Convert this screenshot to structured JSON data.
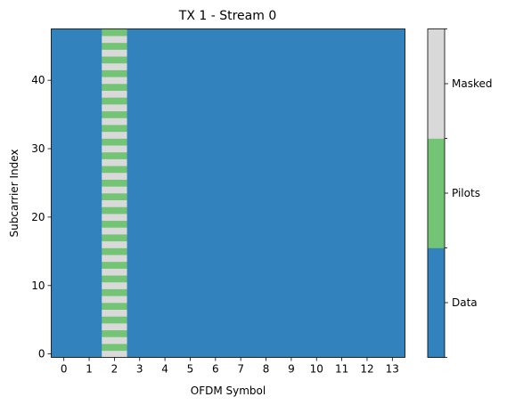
{
  "chart_data": {
    "type": "heatmap",
    "title": "TX 1 - Stream 0",
    "xlabel": "OFDM Symbol",
    "ylabel": "Subcarrier Index",
    "x_ticks": [
      0,
      1,
      2,
      3,
      4,
      5,
      6,
      7,
      8,
      9,
      10,
      11,
      12,
      13
    ],
    "y_ticks": [
      0,
      10,
      20,
      30,
      40
    ],
    "num_symbols": 14,
    "num_subcarriers": 48,
    "grid": false,
    "colorbar": {
      "position": "right",
      "categories": [
        {
          "label": "Data",
          "value": 0,
          "color": "#3182bd"
        },
        {
          "label": "Pilots",
          "value": 1,
          "color": "#74c476"
        },
        {
          "label": "Masked",
          "value": 2,
          "color": "#d9d9d9"
        }
      ]
    },
    "default_value": 0,
    "special_columns": [
      {
        "symbol": 2,
        "pattern_by_subcarrier_parity": {
          "even": 2,
          "odd": 1
        }
      }
    ]
  }
}
